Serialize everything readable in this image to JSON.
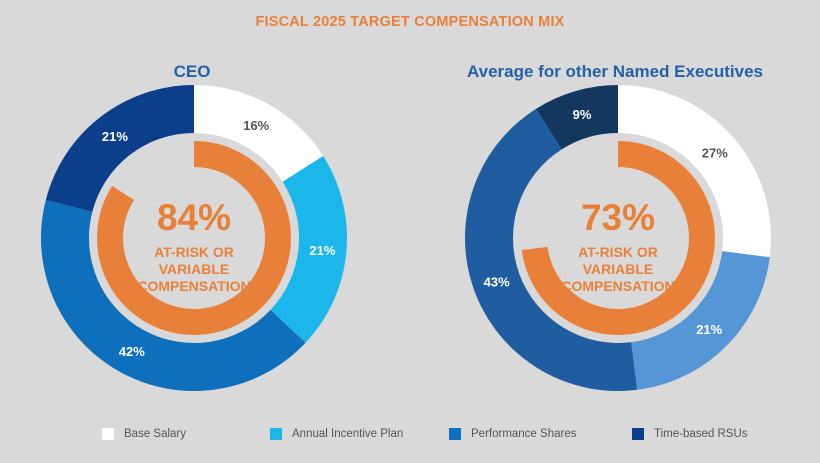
{
  "chart_data": {
    "title": "FISCAL 2025 TARGET COMPENSATION MIX",
    "type": "pie",
    "legend": {
      "position": "bottom",
      "entries": [
        {
          "name": "Base Salary",
          "color": "#ffffff"
        },
        {
          "name": "Annual Incentive Plan",
          "color": "#1cb7ea"
        },
        {
          "name": "Performance Shares",
          "color": "#0e6fbd"
        },
        {
          "name": "Time-based RSUs",
          "color": "#0b3f8c"
        }
      ]
    },
    "charts": [
      {
        "title": "CEO",
        "segments": [
          {
            "name": "Base Salary",
            "value": 16,
            "label": "16%",
            "color": "#ffffff",
            "label_color": "#555555"
          },
          {
            "name": "Annual Incentive Plan",
            "value": 21,
            "label": "21%",
            "color": "#1cb7ea",
            "label_color": "#ffffff"
          },
          {
            "name": "Performance Shares",
            "value": 42,
            "label": "42%",
            "color": "#0e6fbd",
            "label_color": "#ffffff"
          },
          {
            "name": "Time-based RSUs",
            "value": 21,
            "label": "21%",
            "color": "#0b3f8c",
            "label_color": "#ffffff"
          }
        ],
        "inner_ring": {
          "value": 84,
          "color": "#e8803a"
        },
        "center": {
          "value_label": "84%",
          "lines": [
            "AT-RISK OR",
            "VARIABLE",
            "COMPENSATION"
          ]
        }
      },
      {
        "title": "Average for other Named Executives",
        "segments": [
          {
            "name": "Base Salary",
            "value": 27,
            "label": "27%",
            "color": "#ffffff",
            "label_color": "#555555"
          },
          {
            "name": "Annual Incentive Plan",
            "value": 21,
            "label": "21%",
            "color": "#5597d6",
            "label_color": "#ffffff"
          },
          {
            "name": "Performance Shares",
            "value": 43,
            "label": "43%",
            "color": "#1f5da0",
            "label_color": "#ffffff"
          },
          {
            "name": "Time-based RSUs",
            "value": 9,
            "label": "9%",
            "color": "#14375f",
            "label_color": "#ffffff"
          }
        ],
        "inner_ring": {
          "value": 73,
          "color": "#e8803a"
        },
        "center": {
          "value_label": "73%",
          "lines": [
            "AT-RISK OR",
            "VARIABLE",
            "COMPENSATION"
          ]
        }
      }
    ]
  }
}
